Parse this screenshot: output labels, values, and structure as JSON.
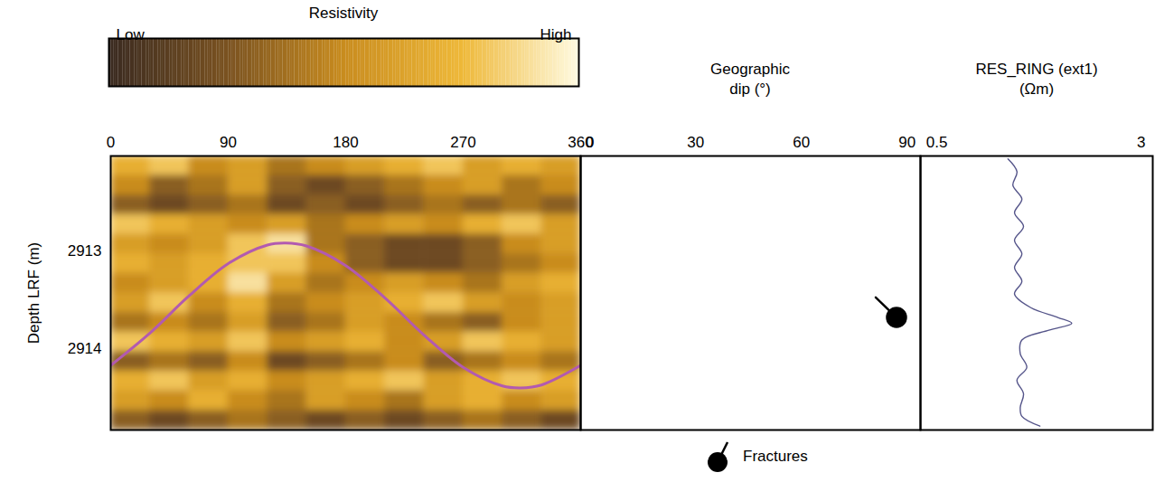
{
  "chart_data": [
    {
      "type": "heatmap",
      "y_label": "Depth LRF (m)",
      "xlim": [
        0,
        360
      ],
      "xticks": [
        0,
        90,
        180,
        270,
        360
      ],
      "ylim": [
        2914.83,
        2912.03
      ],
      "yticks": [
        2913,
        2914
      ],
      "colorbar": {
        "title": "Resistivity",
        "range": [
          0,
          1
        ],
        "ticks": [
          {
            "value": 0,
            "label": "Low"
          },
          {
            "value": 1,
            "label": "High"
          }
        ],
        "colors": [
          "#3a2a20",
          "#7a5220",
          "#c98c1e",
          "#eeb838",
          "#fffbe2"
        ]
      },
      "x_edges": [
        0,
        30,
        60,
        90,
        120,
        150,
        180,
        210,
        240,
        270,
        300,
        330,
        360
      ],
      "y_edges": [
        2912.03,
        2912.23,
        2912.43,
        2912.63,
        2912.83,
        2913.03,
        2913.23,
        2913.43,
        2913.63,
        2913.83,
        2914.03,
        2914.23,
        2914.43,
        2914.63,
        2914.83
      ],
      "cells": [
        [
          0.7,
          0.8,
          0.5,
          0.6,
          0.4,
          0.5,
          0.6,
          0.7,
          0.8,
          0.6,
          0.7,
          0.6
        ],
        [
          0.5,
          0.3,
          0.4,
          0.6,
          0.3,
          0.2,
          0.3,
          0.4,
          0.5,
          0.6,
          0.4,
          0.5
        ],
        [
          0.3,
          0.2,
          0.3,
          0.4,
          0.2,
          0.3,
          0.2,
          0.3,
          0.4,
          0.3,
          0.4,
          0.3
        ],
        [
          0.8,
          0.7,
          0.6,
          0.5,
          0.6,
          0.4,
          0.5,
          0.6,
          0.5,
          0.7,
          0.8,
          0.6
        ],
        [
          0.6,
          0.5,
          0.6,
          0.8,
          0.9,
          0.4,
          0.3,
          0.2,
          0.2,
          0.3,
          0.5,
          0.6
        ],
        [
          0.7,
          0.6,
          0.7,
          0.8,
          0.8,
          0.5,
          0.3,
          0.2,
          0.2,
          0.3,
          0.4,
          0.5
        ],
        [
          0.5,
          0.6,
          0.7,
          0.9,
          0.6,
          0.4,
          0.5,
          0.6,
          0.5,
          0.4,
          0.6,
          0.7
        ],
        [
          0.6,
          0.8,
          0.5,
          0.7,
          0.4,
          0.5,
          0.6,
          0.7,
          0.8,
          0.6,
          0.5,
          0.6
        ],
        [
          0.4,
          0.5,
          0.4,
          0.6,
          0.3,
          0.4,
          0.6,
          0.5,
          0.4,
          0.3,
          0.5,
          0.6
        ],
        [
          0.8,
          0.7,
          0.6,
          0.8,
          0.5,
          0.6,
          0.7,
          0.5,
          0.6,
          0.8,
          0.7,
          0.6
        ],
        [
          0.3,
          0.4,
          0.3,
          0.5,
          0.2,
          0.3,
          0.4,
          0.5,
          0.3,
          0.4,
          0.5,
          0.4
        ],
        [
          0.7,
          0.8,
          0.6,
          0.7,
          0.5,
          0.6,
          0.7,
          0.8,
          0.6,
          0.7,
          0.8,
          0.7
        ],
        [
          0.6,
          0.5,
          0.7,
          0.5,
          0.4,
          0.6,
          0.5,
          0.4,
          0.6,
          0.7,
          0.5,
          0.6
        ],
        [
          0.3,
          0.2,
          0.3,
          0.4,
          0.3,
          0.2,
          0.3,
          0.2,
          0.3,
          0.4,
          0.3,
          0.2
        ]
      ],
      "series": [
        {
          "type": "line",
          "color": "#b25ab0",
          "x": [
            0,
            30,
            60,
            90,
            120,
            134,
            150,
            180,
            210,
            240,
            270,
            300,
            314,
            330,
            360
          ],
          "values": [
            2914.17,
            2913.84,
            2913.46,
            2913.13,
            2912.94,
            2912.92,
            2912.95,
            2913.15,
            2913.48,
            2913.86,
            2914.19,
            2914.38,
            2914.4,
            2914.37,
            2914.17
          ]
        }
      ]
    },
    {
      "type": "scatter",
      "x_label": "Geographic\ndip (°)",
      "xlim": [
        -2.6,
        93.8
      ],
      "xticks": [
        0,
        30,
        60,
        90
      ],
      "ylim": [
        2914.83,
        2912.03
      ],
      "tick_labels": "x",
      "legend": "bottom",
      "series": [
        {
          "name": "Fractures",
          "marker": "tadpole",
          "color": "#000000",
          "x": [
            87
          ],
          "values": [
            2913.68
          ],
          "azimuth": [
            314
          ]
        }
      ]
    },
    {
      "type": "line",
      "x_label": "RES_RING (ext1)\n(Ωm)",
      "xlim": [
        0.3,
        3.14
      ],
      "xticks": [
        0.5,
        3
      ],
      "ylim": [
        2914.83,
        2912.03
      ],
      "tick_labels": "x",
      "series": [
        {
          "color": "#55558a",
          "x": [
            1.37,
            1.48,
            1.43,
            1.54,
            1.45,
            1.56,
            1.45,
            1.54,
            1.45,
            1.54,
            1.45,
            1.65,
            1.98,
            2.15,
            1.87,
            1.54,
            1.52,
            1.6,
            1.48,
            1.56,
            1.52,
            1.54,
            1.76
          ],
          "values": [
            2912.06,
            2912.19,
            2912.33,
            2912.47,
            2912.61,
            2912.75,
            2912.89,
            2913.03,
            2913.17,
            2913.31,
            2913.44,
            2913.58,
            2913.68,
            2913.74,
            2913.81,
            2913.91,
            2914.05,
            2914.19,
            2914.32,
            2914.46,
            2914.6,
            2914.69,
            2914.79
          ]
        }
      ]
    }
  ]
}
